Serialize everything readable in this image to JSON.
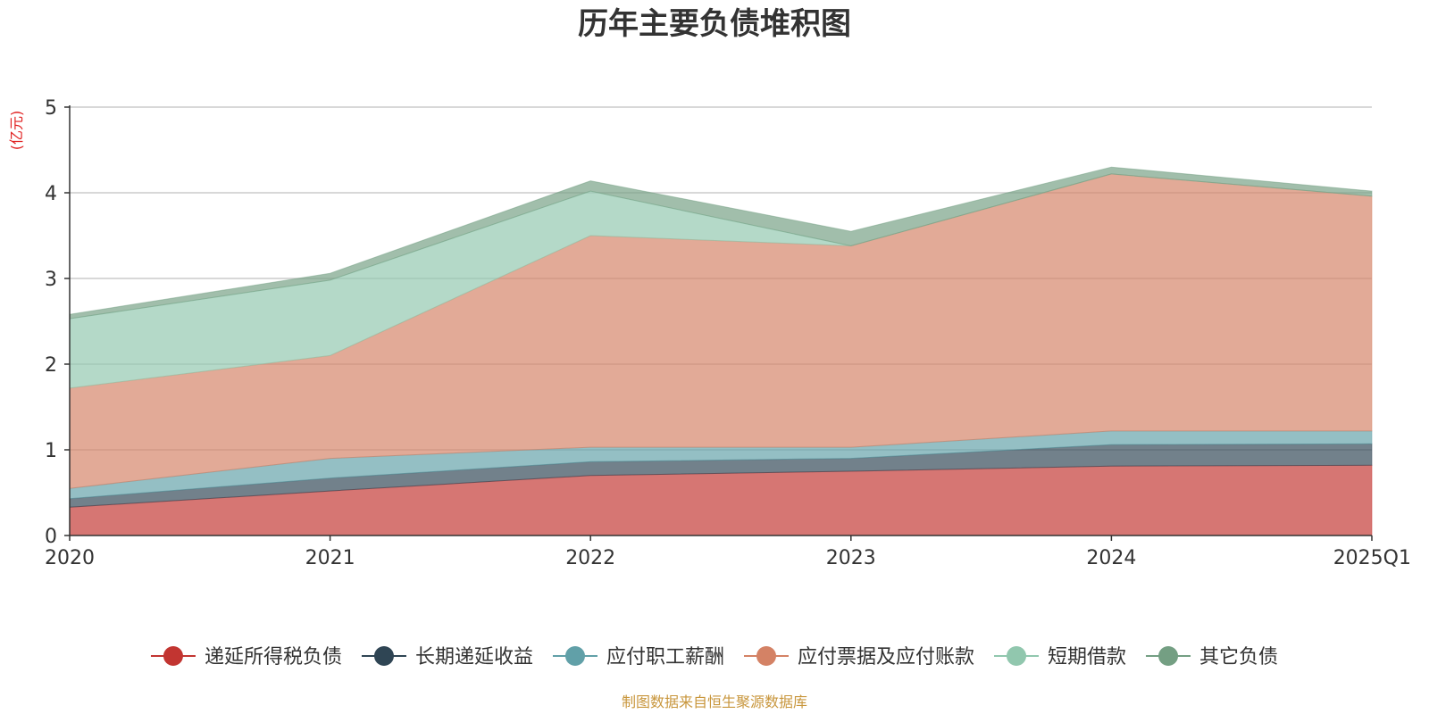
{
  "chart_data": {
    "type": "area",
    "stacked": true,
    "title": "历年主要负债堆积图",
    "unit_label": "(亿元)",
    "categories": [
      "2020",
      "2021",
      "2022",
      "2023",
      "2024",
      "2025Q1"
    ],
    "ylim": [
      0,
      5
    ],
    "yticks": [
      "0",
      "1",
      "2",
      "3",
      "4",
      "5"
    ],
    "grid": true,
    "legend_position": "bottom",
    "series": [
      {
        "name": "递延所得税负债",
        "color": "#c23531",
        "values": [
          0.33,
          0.52,
          0.7,
          0.75,
          0.81,
          0.82
        ]
      },
      {
        "name": "长期递延收益",
        "color": "#2f4554",
        "values": [
          0.1,
          0.15,
          0.16,
          0.15,
          0.25,
          0.25
        ]
      },
      {
        "name": "应付职工薪酬",
        "color": "#61a0a8",
        "values": [
          0.12,
          0.23,
          0.17,
          0.13,
          0.16,
          0.15
        ]
      },
      {
        "name": "应付票据及应付账款",
        "color": "#d48265",
        "values": [
          1.17,
          1.2,
          2.47,
          2.35,
          3.0,
          2.74
        ]
      },
      {
        "name": "短期借款",
        "color": "#91c7ae",
        "values": [
          0.81,
          0.88,
          0.52,
          0.0,
          0.0,
          0.0
        ]
      },
      {
        "name": "其它负债",
        "color": "#749f83",
        "values": [
          0.05,
          0.08,
          0.12,
          0.17,
          0.08,
          0.06
        ]
      }
    ],
    "source": "制图数据来自恒生聚源数据库"
  }
}
